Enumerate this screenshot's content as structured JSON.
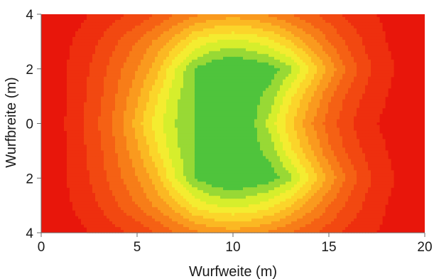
{
  "chart_data": {
    "type": "heatmap",
    "xlabel": "Wurfweite (m)",
    "ylabel": "Wurfbreite (m)",
    "xlim": [
      0,
      20
    ],
    "ylim": [
      -4,
      4
    ],
    "x_ticks": [
      0,
      5,
      10,
      15,
      20
    ],
    "y_ticks": [
      4,
      2,
      0,
      2,
      4
    ],
    "grid": false,
    "legend": "none",
    "field": {
      "x": [
        0,
        1,
        2,
        3,
        4,
        5,
        6,
        7,
        8,
        9,
        10,
        11,
        12,
        13,
        14,
        15,
        16,
        17,
        18,
        19,
        20
      ],
      "y": [
        -4,
        -3,
        -2,
        -1,
        0,
        1,
        2,
        3,
        4
      ],
      "z": [
        [
          0.0,
          0.03,
          0.06,
          0.1,
          0.14,
          0.18,
          0.24,
          0.32,
          0.38,
          0.42,
          0.44,
          0.42,
          0.38,
          0.32,
          0.26,
          0.2,
          0.14,
          0.1,
          0.06,
          0.03,
          0.0
        ],
        [
          0.0,
          0.05,
          0.1,
          0.16,
          0.24,
          0.32,
          0.42,
          0.52,
          0.66,
          0.72,
          0.74,
          0.72,
          0.66,
          0.56,
          0.44,
          0.32,
          0.22,
          0.14,
          0.08,
          0.04,
          0.0
        ],
        [
          0.0,
          0.06,
          0.12,
          0.2,
          0.3,
          0.4,
          0.52,
          0.72,
          0.88,
          0.96,
          1.0,
          0.96,
          0.92,
          0.82,
          0.64,
          0.46,
          0.3,
          0.18,
          0.1,
          0.05,
          0.0
        ],
        [
          0.0,
          0.06,
          0.13,
          0.22,
          0.33,
          0.46,
          0.62,
          0.78,
          0.88,
          0.92,
          0.96,
          0.92,
          0.84,
          0.66,
          0.5,
          0.34,
          0.22,
          0.14,
          0.08,
          0.04,
          0.0
        ],
        [
          0.0,
          0.06,
          0.14,
          0.24,
          0.36,
          0.52,
          0.68,
          0.8,
          0.88,
          0.92,
          0.94,
          0.9,
          0.76,
          0.58,
          0.42,
          0.28,
          0.18,
          0.1,
          0.06,
          0.03,
          0.0
        ],
        [
          0.0,
          0.06,
          0.13,
          0.22,
          0.33,
          0.46,
          0.62,
          0.78,
          0.88,
          0.92,
          0.96,
          0.92,
          0.84,
          0.66,
          0.5,
          0.34,
          0.22,
          0.14,
          0.08,
          0.04,
          0.0
        ],
        [
          0.0,
          0.06,
          0.12,
          0.2,
          0.3,
          0.4,
          0.52,
          0.72,
          0.88,
          0.96,
          1.0,
          0.96,
          0.92,
          0.82,
          0.64,
          0.46,
          0.3,
          0.18,
          0.1,
          0.05,
          0.0
        ],
        [
          0.0,
          0.05,
          0.1,
          0.16,
          0.24,
          0.32,
          0.42,
          0.52,
          0.66,
          0.72,
          0.74,
          0.72,
          0.66,
          0.56,
          0.44,
          0.32,
          0.22,
          0.14,
          0.08,
          0.04,
          0.0
        ],
        [
          0.0,
          0.03,
          0.06,
          0.1,
          0.14,
          0.18,
          0.24,
          0.32,
          0.38,
          0.42,
          0.44,
          0.42,
          0.38,
          0.32,
          0.26,
          0.2,
          0.14,
          0.1,
          0.06,
          0.03,
          0.0
        ]
      ]
    },
    "levels": [
      0.0,
      0.08,
      0.16,
      0.24,
      0.32,
      0.4,
      0.48,
      0.56,
      0.64,
      0.72,
      0.8,
      0.88,
      1.01
    ],
    "colors": [
      "#e8160b",
      "#ee2f0e",
      "#f24811",
      "#f56114",
      "#f77d18",
      "#fa9a1e",
      "#fbb823",
      "#fbd52a",
      "#f4ec30",
      "#d6ee2c",
      "#98d935",
      "#4fc43c",
      "#19b83b"
    ]
  }
}
